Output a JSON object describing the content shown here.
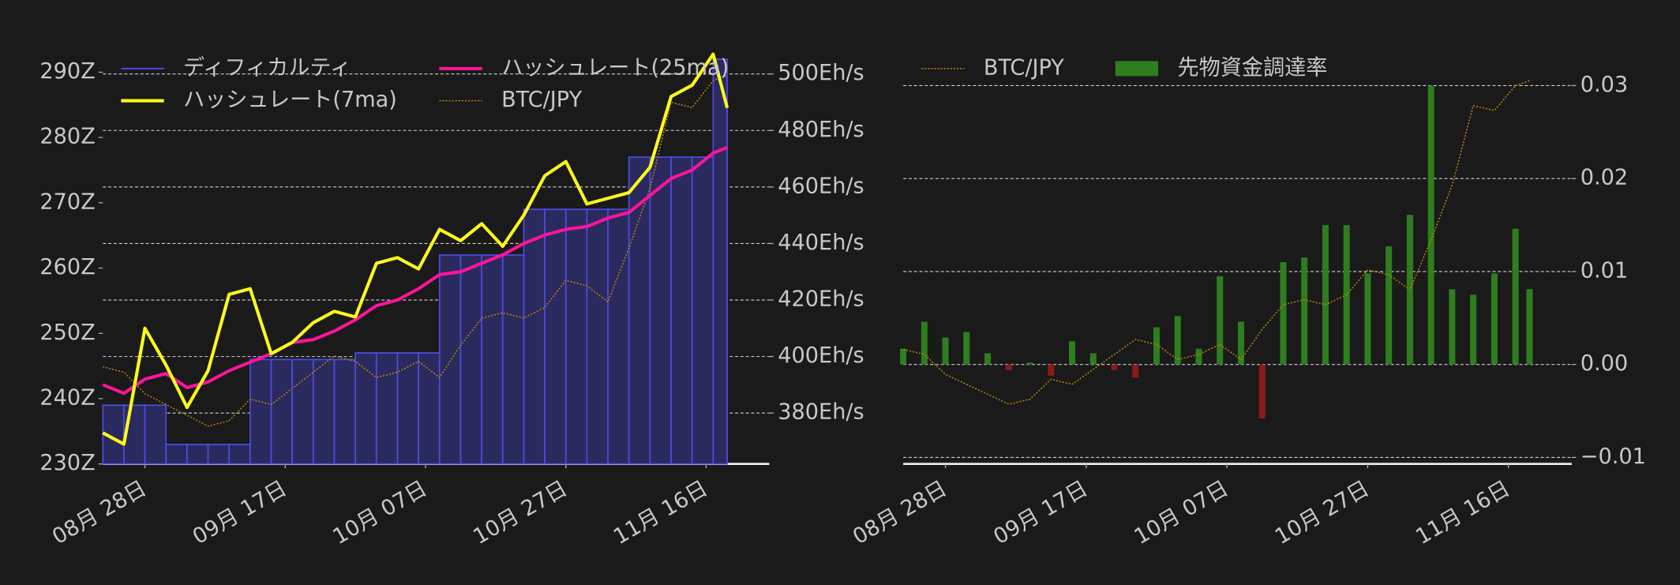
{
  "chart_data": [
    {
      "type": "line",
      "x": [
        "08-22",
        "08-25",
        "08-28",
        "08-31",
        "09-03",
        "09-06",
        "09-09",
        "09-12",
        "09-15",
        "09-18",
        "09-21",
        "09-24",
        "09-27",
        "09-30",
        "10-03",
        "10-06",
        "10-09",
        "10-12",
        "10-15",
        "10-18",
        "10-21",
        "10-24",
        "10-27",
        "10-30",
        "11-02",
        "11-05",
        "11-08",
        "11-11",
        "11-14",
        "11-17",
        "11-19"
      ],
      "xlim": [
        "08-22",
        "11-25"
      ],
      "xticks": [
        {
          "value": "08-28",
          "label": "08月 28日"
        },
        {
          "value": "09-17",
          "label": "09月 17日"
        },
        {
          "value": "10-07",
          "label": "10月 07日"
        },
        {
          "value": "10-27",
          "label": "10月 27日"
        },
        {
          "value": "11-16",
          "label": "11月 16日"
        }
      ],
      "ylim": [
        230,
        294.5
      ],
      "yticks": [
        {
          "value": 230,
          "label": "230Z"
        },
        {
          "value": 240,
          "label": "240Z"
        },
        {
          "value": 250,
          "label": "250Z"
        },
        {
          "value": 260,
          "label": "260Z"
        },
        {
          "value": 270,
          "label": "270Z"
        },
        {
          "value": 280,
          "label": "280Z"
        },
        {
          "value": 290,
          "label": "290Z"
        }
      ],
      "y2lim": [
        362,
        511
      ],
      "y2ticks": [
        {
          "value": 380,
          "label": "380Eh/s"
        },
        {
          "value": 400,
          "label": "400Eh/s"
        },
        {
          "value": 420,
          "label": "420Eh/s"
        },
        {
          "value": 440,
          "label": "440Eh/s"
        },
        {
          "value": 460,
          "label": "460Eh/s"
        },
        {
          "value": 480,
          "label": "480Eh/s"
        },
        {
          "value": 500,
          "label": "500Eh/s"
        }
      ],
      "y3lim": [
        7400000,
        15200000
      ],
      "grid": "y2",
      "legend": "upper left",
      "legend_columns": 2,
      "series": [
        {
          "name": "ディフィカルティ",
          "type": "step-area",
          "color": "#4b4bdc",
          "fill": "#2b2a5e",
          "values": [
            239,
            239,
            239,
            233,
            233,
            233,
            233,
            246,
            246,
            246,
            246,
            246,
            247,
            247,
            247,
            247,
            262,
            262,
            262,
            262,
            269,
            269,
            269,
            269,
            269,
            277,
            277,
            277,
            277,
            292,
            292
          ]
        },
        {
          "name": "ハッシュレート(7ma)",
          "type": "line",
          "axis": "y2",
          "color": "#ffff1a",
          "values": [
            373,
            369,
            410,
            397,
            382,
            395,
            422,
            424,
            401,
            405,
            412,
            416,
            414,
            433,
            435,
            431,
            445,
            441,
            447,
            439,
            450,
            464,
            469,
            454,
            456,
            458,
            467,
            492,
            496,
            507,
            488
          ]
        },
        {
          "name": "ハッシュレート(25ma)",
          "type": "line",
          "axis": "y2",
          "color": "#ff149a",
          "values": [
            390,
            387,
            392,
            394,
            389,
            391,
            395,
            398,
            401,
            405,
            406,
            409,
            413,
            418,
            420,
            424,
            429,
            430,
            433,
            436,
            440,
            443,
            445,
            446,
            449,
            451,
            457,
            463,
            466,
            472,
            474
          ]
        },
        {
          "name": "BTC/JPY",
          "type": "line",
          "axis": "y3",
          "color": "#b8860b",
          "dash": "dotted",
          "values": [
            9200000,
            9100000,
            8700000,
            8500000,
            8300000,
            8100000,
            8200000,
            8600000,
            8500000,
            8800000,
            9100000,
            9400000,
            9300000,
            9000000,
            9100000,
            9300000,
            9000000,
            9600000,
            10100000,
            10200000,
            10100000,
            10300000,
            10800000,
            10700000,
            10400000,
            11400000,
            12500000,
            14100000,
            14000000,
            14500000,
            14600000
          ]
        }
      ]
    },
    {
      "type": "bar",
      "x": [
        "08-22",
        "08-25",
        "08-28",
        "08-31",
        "09-03",
        "09-06",
        "09-09",
        "09-12",
        "09-15",
        "09-18",
        "09-21",
        "09-24",
        "09-27",
        "09-30",
        "10-03",
        "10-06",
        "10-09",
        "10-12",
        "10-15",
        "10-18",
        "10-21",
        "10-24",
        "10-27",
        "10-30",
        "11-02",
        "11-05",
        "11-08",
        "11-11",
        "11-14",
        "11-17",
        "11-19"
      ],
      "xlim": [
        "08-22",
        "11-25"
      ],
      "xticks": [
        {
          "value": "08-28",
          "label": "08月 28日"
        },
        {
          "value": "09-17",
          "label": "09月 17日"
        },
        {
          "value": "10-07",
          "label": "10月 07日"
        },
        {
          "value": "10-27",
          "label": "10月 27日"
        },
        {
          "value": "11-16",
          "label": "11月 16日"
        }
      ],
      "ylim": [
        -0.0107,
        0.0346
      ],
      "yticks": [
        {
          "value": -0.01,
          "label": "−0.01"
        },
        {
          "value": 0,
          "label": "0.00"
        },
        {
          "value": 0.01,
          "label": "0.01"
        },
        {
          "value": 0.02,
          "label": "0.02"
        },
        {
          "value": 0.03,
          "label": "0.03"
        }
      ],
      "y_axis_side": "right",
      "y3lim": [
        6900000,
        15360000
      ],
      "grid": "y",
      "legend": "upper left",
      "legend_columns": 2,
      "series": [
        {
          "name": "BTC/JPY",
          "type": "line",
          "axis": "y3",
          "color": "#b8860b",
          "dash": "dotted",
          "values": [
            9200000,
            9100000,
            8700000,
            8500000,
            8300000,
            8100000,
            8200000,
            8600000,
            8500000,
            8800000,
            9100000,
            9400000,
            9300000,
            9000000,
            9100000,
            9300000,
            9000000,
            9600000,
            10100000,
            10200000,
            10100000,
            10300000,
            10800000,
            10700000,
            10400000,
            11400000,
            12500000,
            14100000,
            14000000,
            14500000,
            14600000
          ]
        },
        {
          "name": "先物資金調達率",
          "type": "bar",
          "color": "#2e7d1f",
          "negative_color": "#8b1a1a",
          "values": [
            0.0017,
            0.0046,
            0.0029,
            0.0035,
            0.0012,
            -0.0006,
            0.0002,
            -0.0012,
            0.0025,
            0.0012,
            -0.0006,
            -0.0014,
            0.004,
            0.0052,
            0.0017,
            0.0095,
            0.0046,
            -0.0058,
            0.011,
            0.0115,
            0.015,
            0.015,
            0.0098,
            0.0127,
            0.0161,
            0.03,
            0.0081,
            0.0075,
            0.0098,
            0.0146,
            0.0081
          ]
        }
      ]
    }
  ]
}
